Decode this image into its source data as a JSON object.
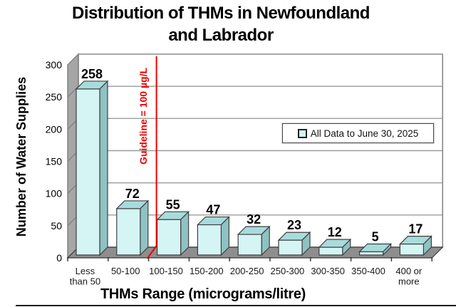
{
  "title_lines": [
    "Distribution of THMs in Newfoundland",
    "and Labrador"
  ],
  "chart_data": {
    "type": "bar",
    "style": "3d-bar",
    "title": "Distribution of THMs in Newfoundland and Labrador",
    "categories": [
      "Less than 50",
      "50-100",
      "100-150",
      "150-200",
      "200-250",
      "250-300",
      "300-350",
      "350-400",
      "400 or more"
    ],
    "tick_labels": [
      [
        "Less",
        "than 50"
      ],
      [
        "50-100"
      ],
      [
        "100-150"
      ],
      [
        "150-200"
      ],
      [
        "200-250"
      ],
      [
        "250-300"
      ],
      [
        "300-350"
      ],
      [
        "350-400"
      ],
      [
        "400 or",
        "more"
      ]
    ],
    "values": [
      258,
      72,
      55,
      47,
      32,
      23,
      12,
      5,
      17
    ],
    "xlabel": "THMs Range (micrograms/litre)",
    "ylabel": "Number of Water Supplies",
    "ylim": [
      0,
      300
    ],
    "yticks": [
      0,
      50,
      100,
      150,
      200,
      250,
      300
    ],
    "grid": true,
    "legend": {
      "position": "right-middle",
      "entries": [
        "All Data to June 30, 2025"
      ]
    },
    "annotation": {
      "label": "Guideline = 100 µg/L",
      "value": 100,
      "at_category_boundary": 2
    },
    "colors": {
      "bar_front": "#D5F4F4",
      "bar_top": "#A8DCDC",
      "bar_side": "#8FC2C2",
      "bar_border": "#3F3F3F",
      "back_wall": "#FFFFFF",
      "gridline": "#9B9B9B",
      "wall": "#A6A6A6",
      "wall_line": "#7F7F7F",
      "floor": "#8E8E8E",
      "frame": "#6E6E6E",
      "guideline": "#EE0000",
      "text": "#000000"
    }
  }
}
